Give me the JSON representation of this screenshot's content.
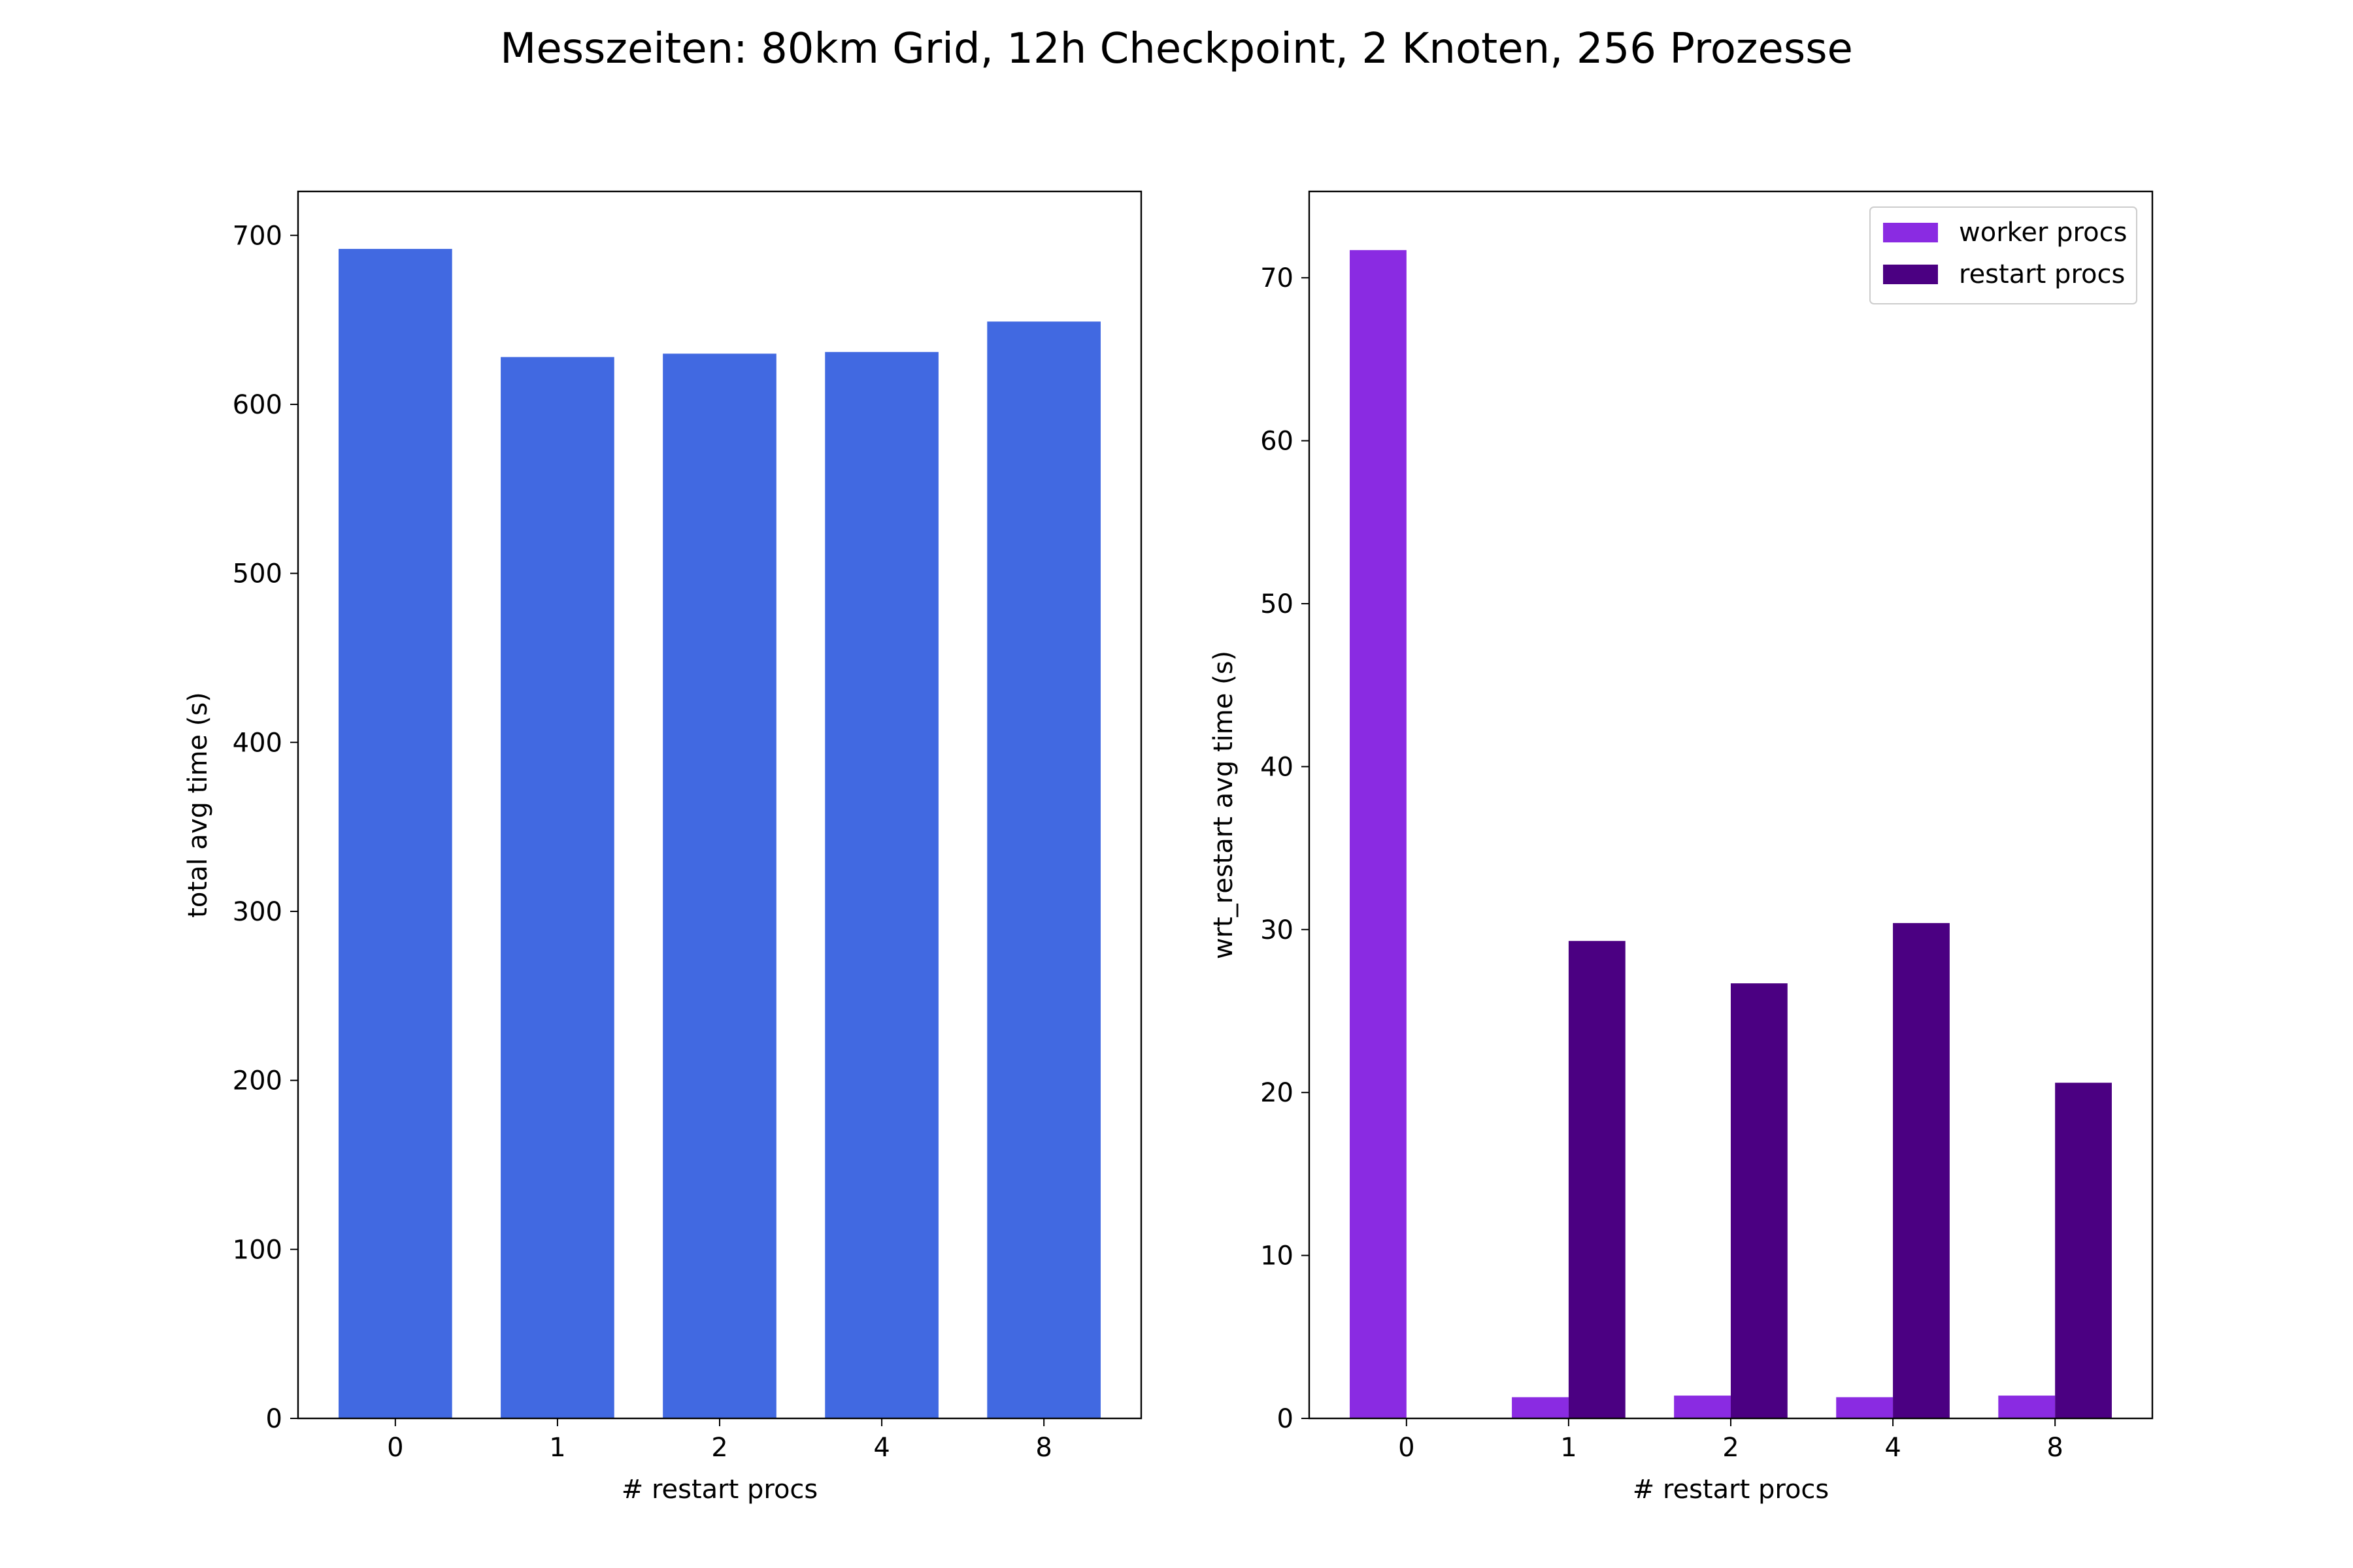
{
  "figure": {
    "title": "Messzeiten: 80km Grid, 12h Checkpoint, 2 Knoten, 256 Prozesse"
  },
  "chart_data": [
    {
      "type": "bar",
      "categories": [
        "0",
        "1",
        "2",
        "4",
        "8"
      ],
      "series": [
        {
          "values": [
            692,
            628,
            630,
            631,
            649
          ],
          "color": "#4169e1"
        }
      ],
      "xlabel": "# restart procs",
      "ylabel": "total avg time (s)",
      "ylim": [
        0,
        726
      ],
      "yticks": [
        0,
        100,
        200,
        300,
        400,
        500,
        600,
        700
      ],
      "grid": false,
      "legend": null
    },
    {
      "type": "bar",
      "categories": [
        "0",
        "1",
        "2",
        "4",
        "8"
      ],
      "series": [
        {
          "name": "worker procs",
          "values": [
            71.7,
            1.3,
            1.4,
            1.3,
            1.4
          ],
          "color": "#8a2be2"
        },
        {
          "name": "restart procs",
          "values": [
            0,
            29.3,
            26.7,
            30.4,
            20.6
          ],
          "color": "#4b0082"
        }
      ],
      "xlabel": "# restart procs",
      "ylabel": "wrt_restart avg time (s)",
      "ylim": [
        0,
        75.3
      ],
      "yticks": [
        0,
        10,
        20,
        30,
        40,
        50,
        60,
        70
      ],
      "grid": false,
      "legend": "upper right"
    }
  ]
}
